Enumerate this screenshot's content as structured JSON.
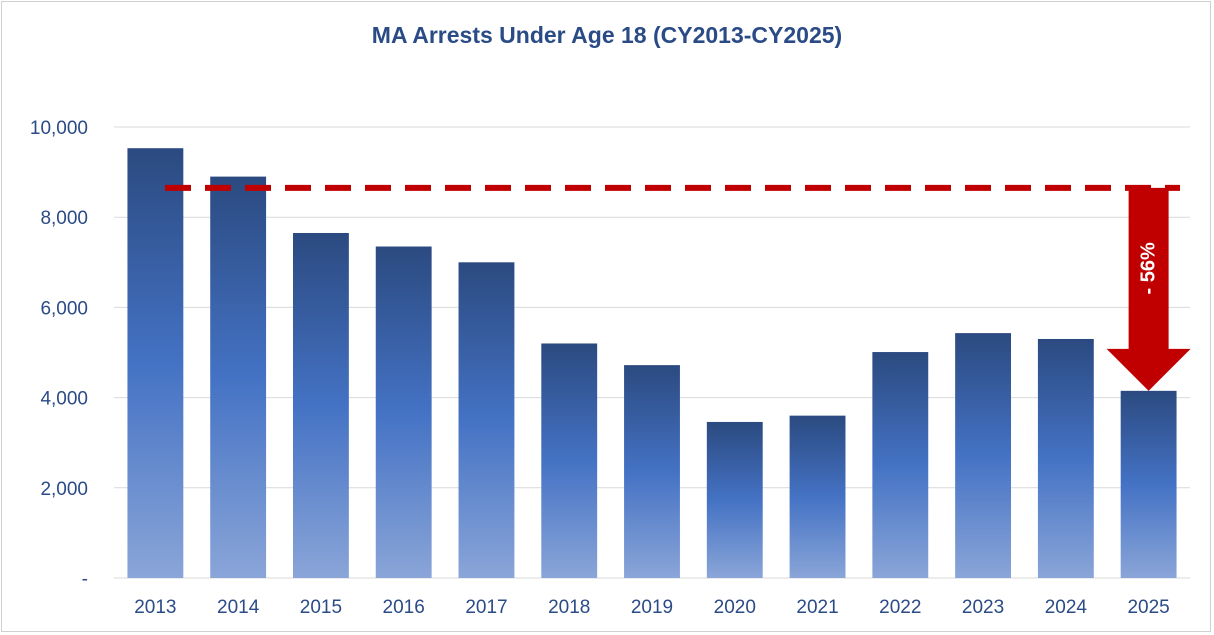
{
  "chart_data": {
    "type": "bar",
    "title": "MA Arrests Under Age 18 (CY2013-CY2025)",
    "xlabel": "",
    "ylabel": "",
    "categories": [
      "2013",
      "2014",
      "2015",
      "2016",
      "2017",
      "2018",
      "2019",
      "2020",
      "2021",
      "2022",
      "2023",
      "2024",
      "2025"
    ],
    "values": [
      9530,
      8900,
      7650,
      7350,
      7000,
      5200,
      4720,
      3460,
      3600,
      5010,
      5430,
      5300,
      4150
    ],
    "ylim": [
      0,
      10000
    ],
    "yticks": [
      0,
      2000,
      4000,
      6000,
      8000,
      10000
    ],
    "ytick_labels": [
      "-",
      "2,000",
      "4,000",
      "6,000",
      "8,000",
      "10,000"
    ],
    "grid": true,
    "reference_line": {
      "value": 8650,
      "style": "dashed",
      "color": "#c00000"
    },
    "annotation": {
      "text": "- 56%",
      "from_value": 8650,
      "to_value": 4150,
      "category": "2025",
      "color": "#c00000"
    },
    "colors": {
      "bar_top": "#2b4a80",
      "bar_mid": "#4472c4",
      "bar_bottom": "#8aa5d8",
      "text": "#2a4b86",
      "grid": "#d9d9d9"
    }
  }
}
